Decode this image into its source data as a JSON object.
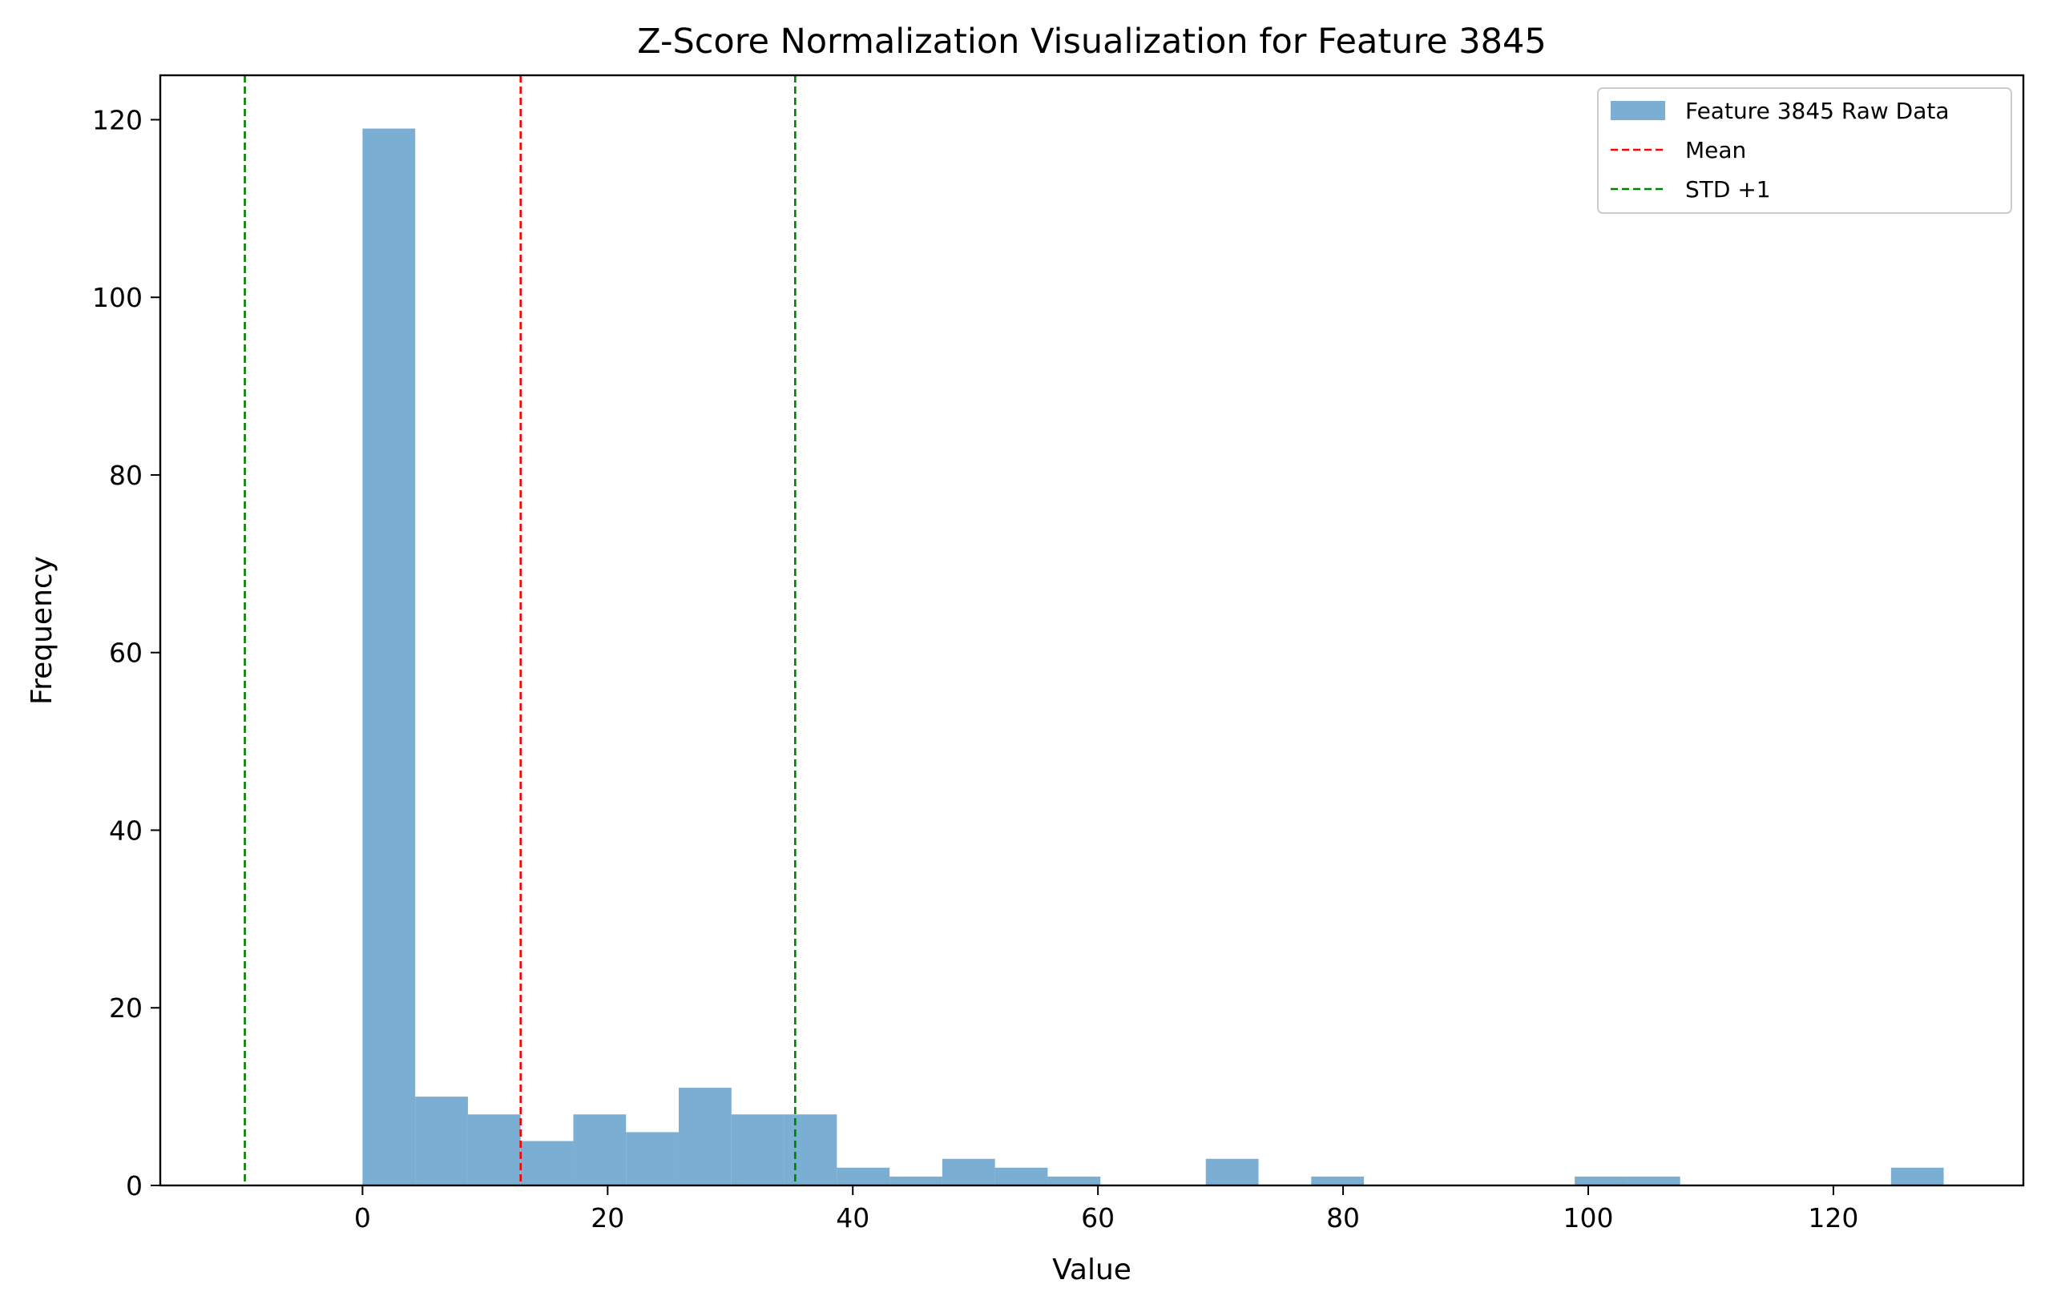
{
  "chart_data": {
    "type": "histogram",
    "title": "Z-Score Normalization Visualization for Feature 3845",
    "xlabel": "Value",
    "ylabel": "Frequency",
    "xlim": [
      -16.5,
      135.5
    ],
    "ylim": [
      0,
      125
    ],
    "xticks": [
      0,
      20,
      40,
      60,
      80,
      100,
      120
    ],
    "yticks": [
      0,
      20,
      40,
      60,
      80,
      100,
      120
    ],
    "grid": false,
    "legend_position": "top-right",
    "bin_width": 4.3,
    "series": [
      {
        "name": "Feature 3845 Raw Data",
        "color": "#7aaed3",
        "bins": [
          {
            "start": 0.0,
            "count": 119
          },
          {
            "start": 4.3,
            "count": 10
          },
          {
            "start": 8.6,
            "count": 8
          },
          {
            "start": 12.9,
            "count": 5
          },
          {
            "start": 17.2,
            "count": 8
          },
          {
            "start": 21.5,
            "count": 6
          },
          {
            "start": 25.8,
            "count": 11
          },
          {
            "start": 30.1,
            "count": 8
          },
          {
            "start": 34.4,
            "count": 8
          },
          {
            "start": 38.7,
            "count": 2
          },
          {
            "start": 43.0,
            "count": 1
          },
          {
            "start": 47.3,
            "count": 3
          },
          {
            "start": 51.6,
            "count": 2
          },
          {
            "start": 55.9,
            "count": 1
          },
          {
            "start": 68.8,
            "count": 3
          },
          {
            "start": 77.4,
            "count": 1
          },
          {
            "start": 98.9,
            "count": 1
          },
          {
            "start": 103.2,
            "count": 1
          },
          {
            "start": 124.7,
            "count": 2
          }
        ]
      }
    ],
    "reference_lines": [
      {
        "name": "Mean",
        "x": 12.9,
        "color": "#ff0000",
        "style": "dashed",
        "in_legend": true
      },
      {
        "name": "STD +1",
        "x": 35.3,
        "color": "#008000",
        "style": "dashed",
        "in_legend": true
      },
      {
        "name": "",
        "x": -9.6,
        "color": "#008000",
        "style": "dashed",
        "in_legend": false
      }
    ]
  }
}
